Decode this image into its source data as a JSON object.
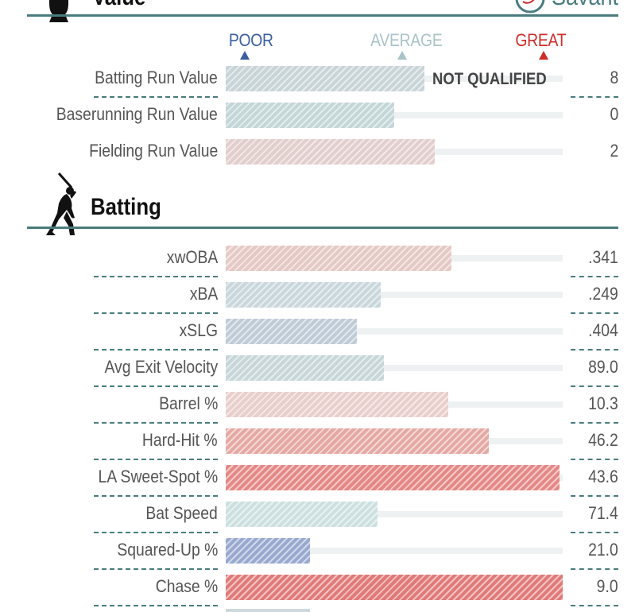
{
  "header": {
    "section_value_title": "Value",
    "brand_text": "Savant"
  },
  "scale": {
    "poor": "POOR",
    "average": "AVERAGE",
    "great": "GREAT",
    "poor_color": "#3a5fa0",
    "average_color": "#a9c3c7",
    "great_color": "#d02b2b"
  },
  "value_rows": [
    {
      "label": "Batting Run Value",
      "value": "8",
      "percentile": 59,
      "color": "#c8d4d8",
      "note": "NOT QUALIFIED"
    },
    {
      "label": "Baserunning Run Value",
      "value": "0",
      "percentile": 50,
      "color": "#c3d6d8"
    },
    {
      "label": "Fielding Run Value",
      "value": "2",
      "percentile": 62,
      "color": "#e2cfcd"
    }
  ],
  "batting": {
    "title": "Batting",
    "rows": [
      {
        "label": "xwOBA",
        "value": ".341",
        "percentile": 67,
        "color": "#e4c9c4"
      },
      {
        "label": "xBA",
        "value": ".249",
        "percentile": 46,
        "color": "#c9d7dc"
      },
      {
        "label": "xSLG",
        "value": ".404",
        "percentile": 39,
        "color": "#bfcbd7"
      },
      {
        "label": "Avg Exit Velocity",
        "value": "89.0",
        "percentile": 47,
        "color": "#c7d6d9"
      },
      {
        "label": "Barrel %",
        "value": "10.3",
        "percentile": 66,
        "color": "#e8cfcc"
      },
      {
        "label": "Hard-Hit %",
        "value": "46.2",
        "percentile": 78,
        "color": "#e5a8a3"
      },
      {
        "label": "LA Sweet-Spot %",
        "value": "43.6",
        "percentile": 99,
        "color": "#e48886"
      },
      {
        "label": "Bat Speed",
        "value": "71.4",
        "percentile": 45,
        "color": "#cde0e0"
      },
      {
        "label": "Squared-Up %",
        "value": "21.0",
        "percentile": 25,
        "color": "#98a8cf"
      },
      {
        "label": "Chase %",
        "value": "9.0",
        "percentile": 100,
        "color": "#e07a79"
      }
    ]
  }
}
